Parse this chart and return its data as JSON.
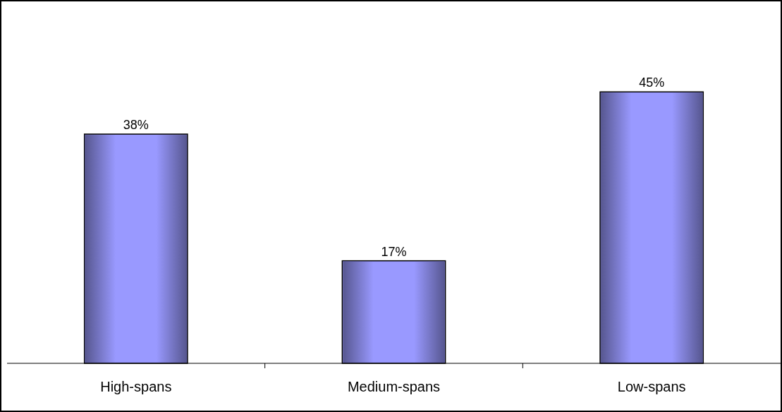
{
  "chart_data": {
    "type": "bar",
    "categories": [
      "High-spans",
      "Medium-spans",
      "Low-spans"
    ],
    "values": [
      38,
      17,
      45
    ],
    "value_labels": [
      "38%",
      "17%",
      "45%"
    ],
    "color": "#9999ff"
  }
}
